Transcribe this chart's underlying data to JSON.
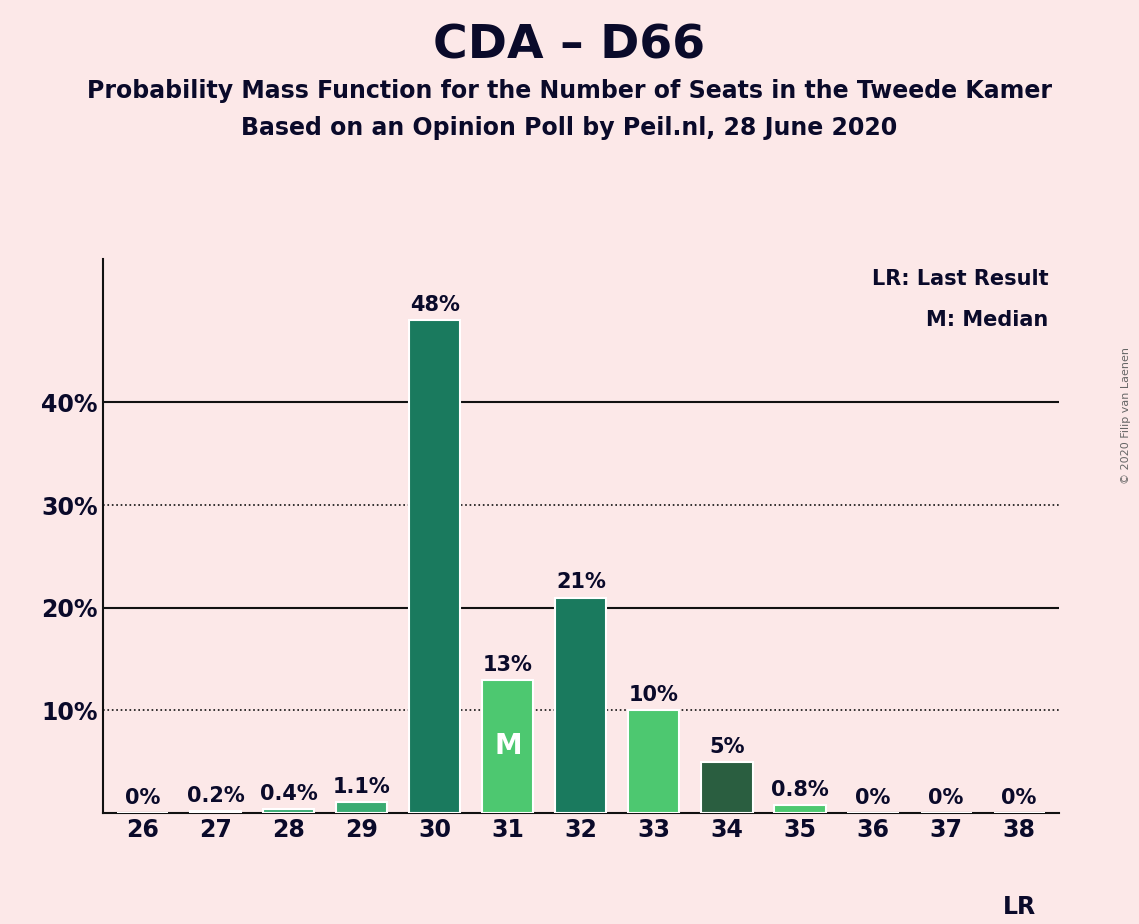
{
  "title": "CDA – D66",
  "subtitle1": "Probability Mass Function for the Number of Seats in the Tweede Kamer",
  "subtitle2": "Based on an Opinion Poll by Peil.nl, 28 June 2020",
  "copyright": "© 2020 Filip van Laenen",
  "legend_lr": "LR: Last Result",
  "legend_m": "M: Median",
  "categories": [
    26,
    27,
    28,
    29,
    30,
    31,
    32,
    33,
    34,
    35,
    36,
    37,
    38
  ],
  "values": [
    0.0,
    0.2,
    0.4,
    1.1,
    48.0,
    13.0,
    21.0,
    10.0,
    5.0,
    0.8,
    0.0,
    0.0,
    0.0
  ],
  "labels": [
    "0%",
    "0.2%",
    "0.4%",
    "1.1%",
    "48%",
    "13%",
    "21%",
    "10%",
    "5%",
    "0.8%",
    "0%",
    "0%",
    "0%"
  ],
  "color_map": {
    "26": "#3aab72",
    "27": "#3aab72",
    "28": "#3aab72",
    "29": "#3aab72",
    "30": "#1a7a5e",
    "31": "#4dc870",
    "32": "#1a7a5e",
    "33": "#4dc870",
    "34": "#2a5e40",
    "35": "#4dc870",
    "36": "#3aab72",
    "37": "#3aab72",
    "38": "#2a5e40"
  },
  "median_bar": 31,
  "lr_bar": 38,
  "background_color": "#fce8e8",
  "ylim": [
    0,
    54
  ],
  "title_fontsize": 34,
  "subtitle_fontsize": 17,
  "label_fontsize": 15,
  "tick_fontsize": 17,
  "legend_fontsize": 15
}
